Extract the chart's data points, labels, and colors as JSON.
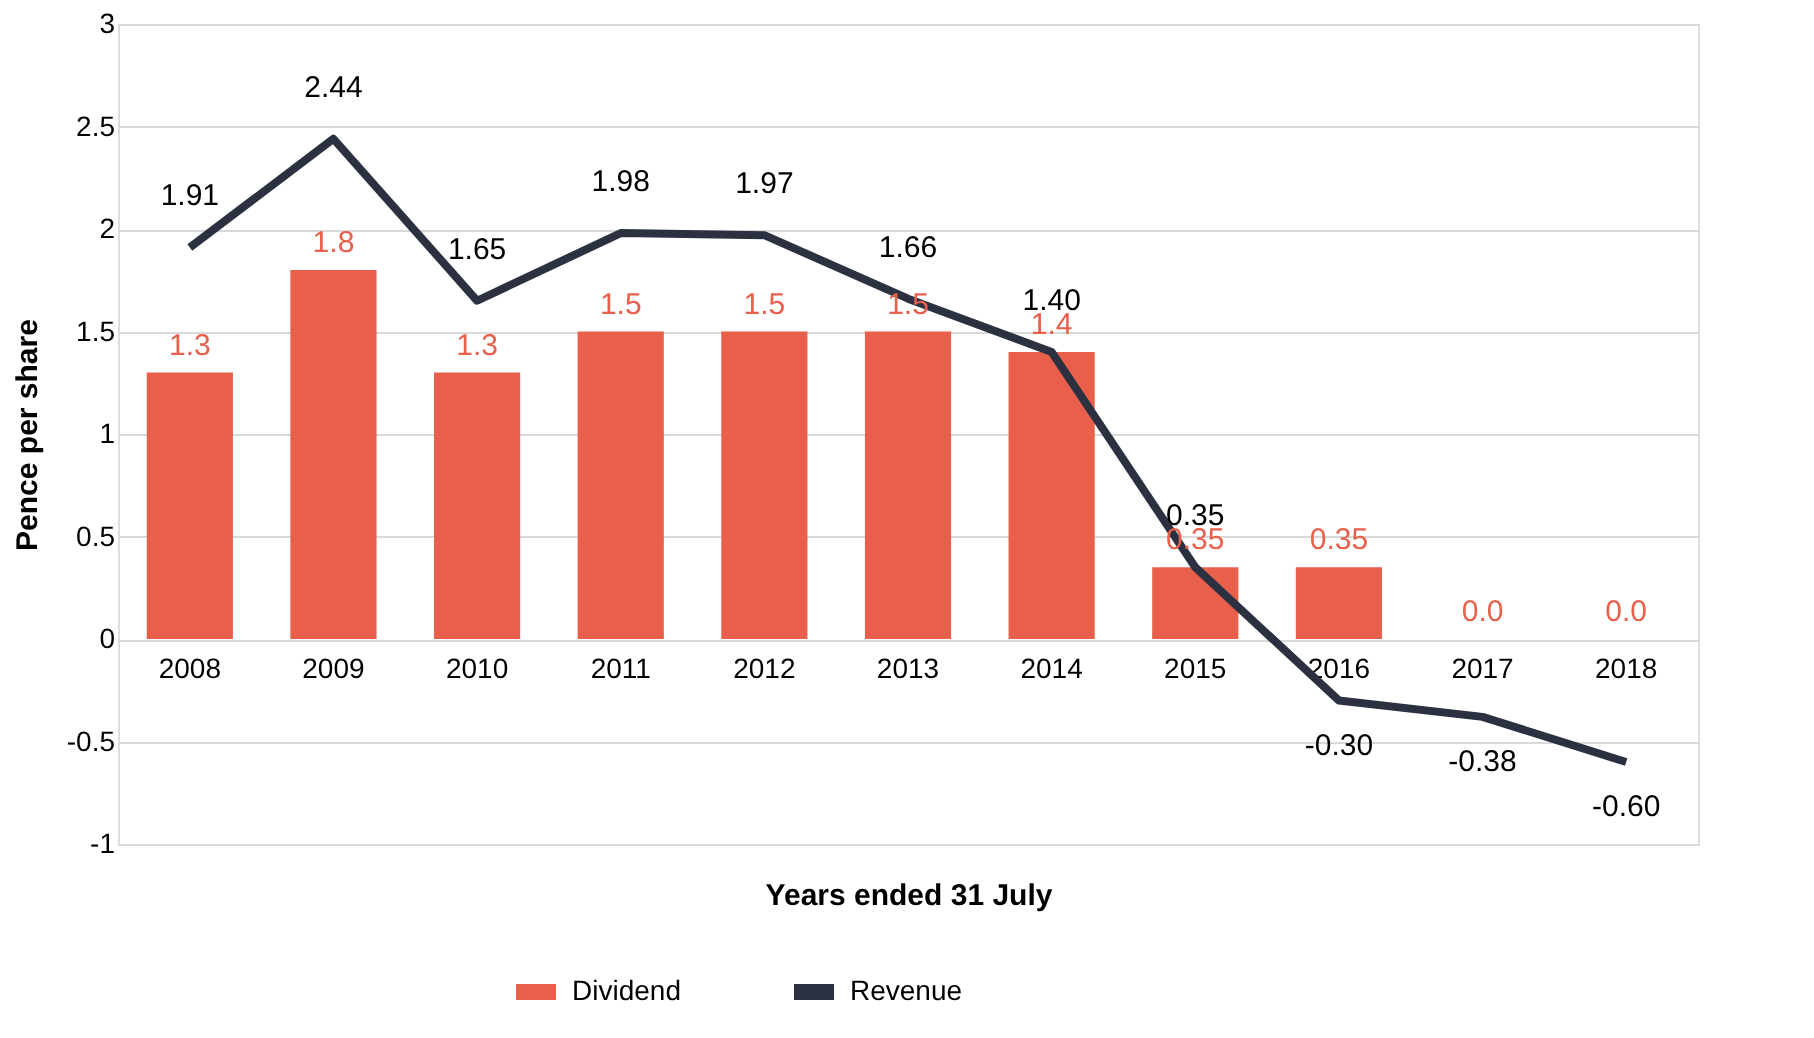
{
  "chart_data": {
    "type": "bar",
    "xlabel": "Years ended 31 July",
    "ylabel": "Pence per share",
    "categories": [
      "2008",
      "2009",
      "2010",
      "2011",
      "2012",
      "2013",
      "2014",
      "2015",
      "2016",
      "2017",
      "2018"
    ],
    "series": [
      {
        "name": "Dividend",
        "color": "#e8604c",
        "values": [
          1.3,
          1.8,
          1.3,
          1.5,
          1.5,
          1.5,
          1.4,
          0.35,
          0.35,
          0.0,
          0.0
        ],
        "value_labels": [
          "1.3",
          "1.8",
          "1.3",
          "1.5",
          "1.5",
          "1.5",
          "1.4",
          "0.35",
          "0.35",
          "0.0",
          "0.0"
        ]
      },
      {
        "name": "Revenue",
        "type": "line",
        "color": "#2b3140",
        "values": [
          1.91,
          2.44,
          1.65,
          1.98,
          1.97,
          1.66,
          1.4,
          0.35,
          -0.3,
          -0.38,
          -0.6
        ],
        "value_labels": [
          "1.91",
          "2.44",
          "1.65",
          "1.98",
          "1.97",
          "1.66",
          "1.40",
          "0.35",
          "-0.30",
          "-0.38",
          "-0.60"
        ]
      }
    ],
    "ylim": [
      -1,
      3
    ],
    "yticks": [
      -1,
      -0.5,
      0,
      0.5,
      1,
      1.5,
      2,
      2.5,
      3
    ],
    "grid": "y",
    "legend": "bottom",
    "marker": "none",
    "line_style": "solid"
  }
}
